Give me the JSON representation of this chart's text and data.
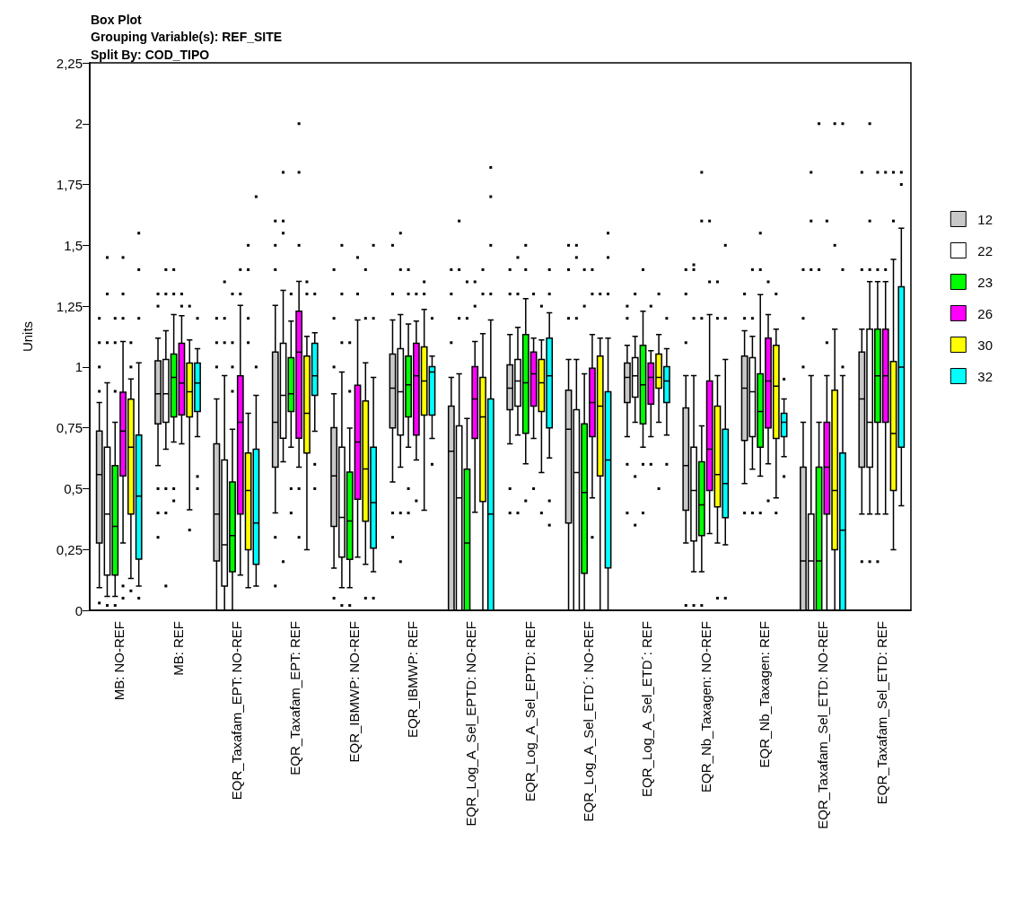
{
  "chart_data": {
    "type": "box",
    "title": "Box Plot",
    "subtitle": "Grouping Variable(s): REF_SITE\nSplit By: COD_TIPO",
    "ylabel": "Units",
    "categories": [
      "MB: NO-REF",
      "MB: REF",
      "EQR_Taxafam_EPT: NO-REF",
      "EQR_Taxafam_EPT: REF",
      "EQR_IBMWP: NO-REF",
      "EQR_IBMWP: REF",
      "EQR_Log_A_Sel_EPTD: NO-REF",
      "EQR_Log_A_Sel_EPTD: REF",
      "EQR_Log_A_Sel_ETD´: NO-REF",
      "EQR_Log_A_Sel_ETD´: REF",
      "EQR_Nb_Taxagen: NO-REF",
      "EQR_Nb_Taxagen: REF",
      "EQR_Taxafam_Sel_ETD: NO-REF",
      "EQR_Taxafam_Sel_ETD: REF"
    ],
    "ylim": [
      0,
      2.25
    ],
    "yticks": [
      0,
      {
        "value": 0.25,
        "label": "0,25"
      },
      {
        "value": 0.5,
        "label": "0,5"
      },
      {
        "value": 0.75,
        "label": "0,75"
      },
      1,
      {
        "value": 1.25,
        "label": "1,25"
      },
      {
        "value": 1.5,
        "label": "1,5"
      },
      {
        "value": 1.75,
        "label": "1,75"
      },
      2,
      {
        "value": 2.25,
        "label": "2,25"
      }
    ],
    "legend": "right",
    "grid": false,
    "series": [
      {
        "name": "12",
        "color": "#c8c8c8",
        "boxes": [
          {
            "low": 0.093,
            "q1": 0.277,
            "median": 0.558,
            "q3": 0.737,
            "high": 0.854,
            "outliers": [
              0.9,
              1.0,
              1.1,
              1.2,
              0.03
            ]
          },
          {
            "low": 0.595,
            "q1": 0.766,
            "median": 0.89,
            "q3": 1.025,
            "high": 1.119,
            "outliers": [
              1.25,
              1.3,
              0.5,
              0.4,
              0.3
            ]
          },
          {
            "low": 0,
            "q1": 0.203,
            "median": 0.396,
            "q3": 0.684,
            "high": 0.869,
            "outliers": [
              1.0,
              1.1,
              1.2
            ]
          },
          {
            "low": 0.4,
            "q1": 0.588,
            "median": 0.773,
            "q3": 1.061,
            "high": 1.253,
            "outliers": [
              1.4,
              1.5,
              1.6,
              0.3,
              0.1
            ]
          },
          {
            "low": 0.173,
            "q1": 0.345,
            "median": 0.552,
            "q3": 0.751,
            "high": 0.89,
            "outliers": [
              1.0,
              1.2,
              1.4,
              0.05
            ]
          },
          {
            "low": 0.527,
            "q1": 0.75,
            "median": 0.913,
            "q3": 1.053,
            "high": 1.193,
            "outliers": [
              1.3,
              1.5,
              0.4,
              0.3
            ]
          },
          {
            "low": 0,
            "q1": 0,
            "median": 0.654,
            "q3": 0.839,
            "high": 0.957,
            "outliers": [
              1.1,
              1.3,
              1.4
            ]
          },
          {
            "low": 0.684,
            "q1": 0.824,
            "median": 0.913,
            "q3": 1.009,
            "high": 1.133,
            "outliers": [
              1.3,
              1.4,
              0.5,
              0.4
            ]
          },
          {
            "low": 0,
            "q1": 0.359,
            "median": 0.744,
            "q3": 0.905,
            "high": 1.031,
            "outliers": [
              1.2,
              1.4,
              1.5
            ]
          },
          {
            "low": 0.714,
            "q1": 0.854,
            "median": 0.957,
            "q3": 1.016,
            "high": 1.089,
            "outliers": [
              1.2,
              1.25,
              0.6,
              0.4
            ]
          },
          {
            "low": 0.277,
            "q1": 0.411,
            "median": 0.595,
            "q3": 0.832,
            "high": 0.965,
            "outliers": [
              1.1,
              1.3,
              1.4,
              0.02
            ]
          },
          {
            "low": 0.521,
            "q1": 0.698,
            "median": 0.913,
            "q3": 1.045,
            "high": 1.149,
            "outliers": [
              1.2,
              1.3,
              0.4
            ]
          },
          {
            "low": 0,
            "q1": 0,
            "median": 0.203,
            "q3": 0.588,
            "high": 0.773,
            "outliers": [
              1.0,
              1.2,
              1.4
            ]
          },
          {
            "low": 0.396,
            "q1": 0.588,
            "median": 0.869,
            "q3": 1.061,
            "high": 1.155,
            "outliers": [
              1.4,
              1.8,
              0.2
            ]
          }
        ]
      },
      {
        "name": "22",
        "color": "#ffffff",
        "boxes": [
          {
            "low": 0.057,
            "q1": 0.145,
            "median": 0.396,
            "q3": 0.67,
            "high": 0.935,
            "outliers": [
              1.1,
              1.3,
              1.45,
              0.02
            ]
          },
          {
            "low": 0.662,
            "q1": 0.773,
            "median": 0.89,
            "q3": 1.031,
            "high": 1.149,
            "outliers": [
              1.3,
              1.4,
              0.5,
              0.4,
              0.1
            ]
          },
          {
            "low": 0,
            "q1": 0.1,
            "median": 0.269,
            "q3": 0.618,
            "high": 0.965,
            "outliers": [
              1.1,
              1.2,
              1.35
            ]
          },
          {
            "low": 0.61,
            "q1": 0.707,
            "median": 0.883,
            "q3": 1.097,
            "high": 1.315,
            "outliers": [
              1.55,
              1.6,
              1.8,
              0.2
            ]
          },
          {
            "low": 0.093,
            "q1": 0.219,
            "median": 0.382,
            "q3": 0.67,
            "high": 0.979,
            "outliers": [
              1.1,
              1.3,
              1.5,
              0.02
            ]
          },
          {
            "low": 0.588,
            "q1": 0.72,
            "median": 0.898,
            "q3": 1.075,
            "high": 1.215,
            "outliers": [
              1.4,
              1.55,
              0.4,
              0.2
            ]
          },
          {
            "low": 0,
            "q1": 0,
            "median": 0.462,
            "q3": 0.758,
            "high": 0.972,
            "outliers": [
              1.2,
              1.4,
              1.6
            ]
          },
          {
            "low": 0.72,
            "q1": 0.839,
            "median": 0.942,
            "q3": 1.031,
            "high": 1.163,
            "outliers": [
              1.3,
              1.45,
              0.4
            ]
          },
          {
            "low": 0,
            "q1": 0,
            "median": 0.566,
            "q3": 0.824,
            "high": 1.031,
            "outliers": [
              1.2,
              1.45,
              1.5
            ]
          },
          {
            "low": 0.773,
            "q1": 0.876,
            "median": 0.964,
            "q3": 1.038,
            "high": 1.126,
            "outliers": [
              1.3,
              0.55,
              0.35
            ]
          },
          {
            "low": 0.159,
            "q1": 0.285,
            "median": 0.492,
            "q3": 0.67,
            "high": 0.965,
            "outliers": [
              1.2,
              1.4,
              1.42,
              0.02
            ]
          },
          {
            "low": 0.58,
            "q1": 0.714,
            "median": 0.898,
            "q3": 1.038,
            "high": 1.126,
            "outliers": [
              1.2,
              1.4,
              0.4
            ]
          },
          {
            "low": 0,
            "q1": 0,
            "median": 0.203,
            "q3": 0.396,
            "high": 0.965,
            "outliers": [
              1.4,
              1.6,
              1.8
            ]
          },
          {
            "low": 0.396,
            "q1": 0.588,
            "median": 0.773,
            "q3": 1.155,
            "high": 1.351,
            "outliers": [
              1.4,
              1.6,
              2.0,
              0.2
            ]
          }
        ]
      },
      {
        "name": "23",
        "color": "#00ff00",
        "boxes": [
          {
            "low": 0.057,
            "q1": 0.145,
            "median": 0.345,
            "q3": 0.595,
            "high": 0.773,
            "outliers": [
              0.9,
              1.1,
              1.2,
              0.02
            ]
          },
          {
            "low": 0.692,
            "q1": 0.795,
            "median": 0.957,
            "q3": 1.053,
            "high": 1.215,
            "outliers": [
              1.3,
              1.4,
              0.5,
              0.45
            ]
          },
          {
            "low": 0,
            "q1": 0.159,
            "median": 0.307,
            "q3": 0.527,
            "high": 0.744,
            "outliers": [
              0.9,
              1.0,
              1.1,
              1.3
            ]
          },
          {
            "low": 0.67,
            "q1": 0.817,
            "median": 0.89,
            "q3": 1.038,
            "high": 1.189,
            "outliers": [
              1.3,
              0.5,
              0.4
            ]
          },
          {
            "low": 0.093,
            "q1": 0.209,
            "median": 0.367,
            "q3": 0.568,
            "high": 0.749,
            "outliers": [
              0.9,
              1.1,
              0.02
            ]
          },
          {
            "low": 0.67,
            "q1": 0.795,
            "median": 0.927,
            "q3": 1.045,
            "high": 1.177,
            "outliers": [
              1.3,
              1.4,
              0.5,
              0.4
            ]
          },
          {
            "low": 0,
            "q1": 0,
            "median": 0.277,
            "q3": 0.58,
            "high": 0.788,
            "outliers": [
              1.2,
              1.35
            ]
          },
          {
            "low": 0.602,
            "q1": 0.728,
            "median": 0.935,
            "q3": 1.133,
            "high": 1.281,
            "outliers": [
              1.4,
              1.5,
              0.45
            ]
          },
          {
            "low": 0,
            "q1": 0.152,
            "median": 0.484,
            "q3": 0.766,
            "high": 0.972,
            "outliers": [
              1.25,
              1.4
            ]
          },
          {
            "low": 0.67,
            "q1": 0.766,
            "median": 0.927,
            "q3": 1.089,
            "high": 1.229,
            "outliers": [
              1.4,
              0.6,
              0.4
            ]
          },
          {
            "low": 0.159,
            "q1": 0.307,
            "median": 0.433,
            "q3": 0.61,
            "high": 0.758,
            "outliers": [
              1.2,
              1.6,
              1.8,
              0.02
            ]
          },
          {
            "low": 0.551,
            "q1": 0.67,
            "median": 0.817,
            "q3": 0.972,
            "high": 1.297,
            "outliers": [
              1.4,
              1.55,
              0.4
            ]
          },
          {
            "low": 0,
            "q1": 0,
            "median": 0.203,
            "q3": 0.588,
            "high": 0.773,
            "outliers": [
              1.4,
              2.0
            ]
          },
          {
            "low": 0.396,
            "q1": 0.773,
            "median": 0.964,
            "q3": 1.155,
            "high": 1.351,
            "outliers": [
              1.4,
              1.8,
              0.2
            ]
          }
        ]
      },
      {
        "name": "26",
        "color": "#ff00ff",
        "boxes": [
          {
            "low": 0.277,
            "q1": 0.552,
            "median": 0.737,
            "q3": 0.896,
            "high": 1.105,
            "outliers": [
              1.2,
              1.3,
              1.45,
              0.1,
              0.05
            ]
          },
          {
            "low": 0.684,
            "q1": 0.803,
            "median": 0.934,
            "q3": 1.097,
            "high": 1.211,
            "outliers": [
              1.3,
              1.25
            ]
          },
          {
            "low": 0.145,
            "q1": 0.396,
            "median": 0.773,
            "q3": 0.964,
            "high": 1.253,
            "outliers": [
              1.3,
              1.4
            ]
          },
          {
            "low": 0.588,
            "q1": 0.707,
            "median": 1.061,
            "q3": 1.229,
            "high": 1.352,
            "outliers": [
              1.5,
              1.8,
              2.0,
              0.3,
              0.5
            ]
          },
          {
            "low": 0.219,
            "q1": 0.456,
            "median": 0.692,
            "q3": 0.925,
            "high": 1.193,
            "outliers": [
              1.3,
              1.45
            ]
          },
          {
            "low": 0.618,
            "q1": 0.72,
            "median": 0.964,
            "q3": 1.097,
            "high": 1.189,
            "outliers": [
              1.3,
              0.45
            ]
          },
          {
            "low": 0.403,
            "q1": 0.706,
            "median": 0.869,
            "q3": 1.001,
            "high": 1.105,
            "outliers": [
              1.25,
              1.35
            ]
          },
          {
            "low": 0.706,
            "q1": 0.839,
            "median": 0.972,
            "q3": 1.061,
            "high": 1.119,
            "outliers": [
              1.3,
              0.5
            ]
          },
          {
            "low": 0.462,
            "q1": 0.714,
            "median": 0.854,
            "q3": 0.995,
            "high": 1.133,
            "outliers": [
              1.3,
              1.4,
              0.3
            ]
          },
          {
            "low": 0.714,
            "q1": 0.847,
            "median": 0.957,
            "q3": 1.016,
            "high": 1.067,
            "outliers": [
              1.25,
              0.6
            ]
          },
          {
            "low": 0.315,
            "q1": 0.492,
            "median": 0.662,
            "q3": 0.942,
            "high": 1.215,
            "outliers": [
              1.35,
              1.6
            ]
          },
          {
            "low": 0.602,
            "q1": 0.75,
            "median": 0.942,
            "q3": 1.119,
            "high": 1.215,
            "outliers": [
              1.35,
              0.45
            ]
          },
          {
            "low": 0,
            "q1": 0.396,
            "median": 0.588,
            "q3": 0.773,
            "high": 0.965,
            "outliers": [
              1.1,
              1.6
            ]
          },
          {
            "low": 0.396,
            "q1": 0.773,
            "median": 0.964,
            "q3": 1.155,
            "high": 1.351,
            "outliers": [
              1.4,
              1.8
            ]
          }
        ]
      },
      {
        "name": "30",
        "color": "#ffff00",
        "boxes": [
          {
            "low": 0.131,
            "q1": 0.396,
            "median": 0.67,
            "q3": 0.868,
            "high": 0.951,
            "outliers": [
              1.0,
              1.1,
              0.08
            ]
          },
          {
            "low": 0.413,
            "q1": 0.795,
            "median": 0.898,
            "q3": 1.016,
            "high": 1.111,
            "outliers": [
              1.25,
              0.33
            ]
          },
          {
            "low": 0.093,
            "q1": 0.249,
            "median": 0.492,
            "q3": 0.646,
            "high": 0.81,
            "outliers": [
              1.1,
              1.2,
              1.4,
              1.5
            ]
          },
          {
            "low": 0.249,
            "q1": 0.646,
            "median": 0.81,
            "q3": 1.045,
            "high": 1.126,
            "outliers": [
              1.3,
              1.35
            ]
          },
          {
            "low": 0.189,
            "q1": 0.366,
            "median": 0.581,
            "q3": 0.86,
            "high": 1.017,
            "outliers": [
              1.2,
              1.4,
              0.05
            ]
          },
          {
            "low": 0.411,
            "q1": 0.802,
            "median": 0.942,
            "q3": 1.083,
            "high": 1.237,
            "outliers": [
              1.3,
              1.35
            ]
          },
          {
            "low": 0,
            "q1": 0.447,
            "median": 0.795,
            "q3": 0.957,
            "high": 1.137,
            "outliers": [
              1.3,
              1.4
            ]
          },
          {
            "low": 0.566,
            "q1": 0.817,
            "median": 0.935,
            "q3": 1.031,
            "high": 1.111,
            "outliers": [
              1.25,
              0.4
            ]
          },
          {
            "low": 0,
            "q1": 0.552,
            "median": 0.839,
            "q3": 1.045,
            "high": 1.119,
            "outliers": [
              1.3
            ]
          },
          {
            "low": 0.773,
            "q1": 0.913,
            "median": 0.957,
            "q3": 1.053,
            "high": 1.133,
            "outliers": [
              1.3,
              0.5
            ]
          },
          {
            "low": 0.277,
            "q1": 0.425,
            "median": 0.558,
            "q3": 0.839,
            "high": 0.965,
            "outliers": [
              1.2,
              1.35,
              0.05
            ]
          },
          {
            "low": 0.462,
            "q1": 0.706,
            "median": 0.921,
            "q3": 1.089,
            "high": 1.155,
            "outliers": [
              1.3,
              0.4
            ]
          },
          {
            "low": 0,
            "q1": 0.249,
            "median": 0.492,
            "q3": 0.905,
            "high": 1.155,
            "outliers": [
              1.5,
              2.0
            ]
          },
          {
            "low": 0.249,
            "q1": 0.492,
            "median": 0.727,
            "q3": 1.023,
            "high": 1.442,
            "outliers": [
              1.6,
              1.8
            ]
          }
        ]
      },
      {
        "name": "32",
        "color": "#00ffff",
        "boxes": [
          {
            "low": 0.1,
            "q1": 0.21,
            "median": 0.469,
            "q3": 0.72,
            "high": 1.017,
            "outliers": [
              1.2,
              1.4,
              1.55,
              0.05
            ]
          },
          {
            "low": 0.714,
            "q1": 0.817,
            "median": 0.934,
            "q3": 1.016,
            "high": 1.075,
            "outliers": [
              1.2,
              0.55,
              0.5
            ]
          },
          {
            "low": 0.1,
            "q1": 0.189,
            "median": 0.359,
            "q3": 0.662,
            "high": 0.883,
            "outliers": [
              1.0,
              1.7
            ]
          },
          {
            "low": 0.736,
            "q1": 0.883,
            "median": 0.964,
            "q3": 1.097,
            "high": 1.141,
            "outliers": [
              1.3,
              0.6,
              0.5
            ]
          },
          {
            "low": 0.159,
            "q1": 0.255,
            "median": 0.443,
            "q3": 0.67,
            "high": 0.957,
            "outliers": [
              1.2,
              1.5,
              0.05
            ]
          },
          {
            "low": 0.706,
            "q1": 0.802,
            "median": 0.979,
            "q3": 1.001,
            "high": 1.045,
            "outliers": [
              1.2,
              0.6
            ]
          },
          {
            "low": 0,
            "q1": 0,
            "median": 0.396,
            "q3": 0.869,
            "high": 1.193,
            "outliers": [
              1.3,
              1.5,
              1.7,
              1.82
            ]
          },
          {
            "low": 0.626,
            "q1": 0.75,
            "median": 0.964,
            "q3": 1.119,
            "high": 1.223,
            "outliers": [
              1.3,
              1.4,
              0.45,
              0.35
            ]
          },
          {
            "low": 0,
            "q1": 0.174,
            "median": 0.618,
            "q3": 0.898,
            "high": 1.119,
            "outliers": [
              1.3,
              1.45,
              1.55
            ]
          },
          {
            "low": 0.72,
            "q1": 0.854,
            "median": 0.942,
            "q3": 1.001,
            "high": 1.075,
            "outliers": [
              1.2,
              0.6
            ]
          },
          {
            "low": 0.269,
            "q1": 0.381,
            "median": 0.521,
            "q3": 0.744,
            "high": 1.031,
            "outliers": [
              1.2,
              1.5,
              0.05
            ]
          },
          {
            "low": 0.632,
            "q1": 0.714,
            "median": 0.773,
            "q3": 0.81,
            "high": 0.869,
            "outliers": [
              0.95,
              0.55
            ]
          },
          {
            "low": 0,
            "q1": 0,
            "median": 0.329,
            "q3": 0.646,
            "high": 0.965,
            "outliers": [
              1.0,
              1.4,
              2.0
            ]
          },
          {
            "low": 0.43,
            "q1": 0.67,
            "median": 1.0,
            "q3": 1.33,
            "high": 1.57,
            "outliers": [
              1.75,
              1.8
            ]
          }
        ]
      }
    ]
  }
}
